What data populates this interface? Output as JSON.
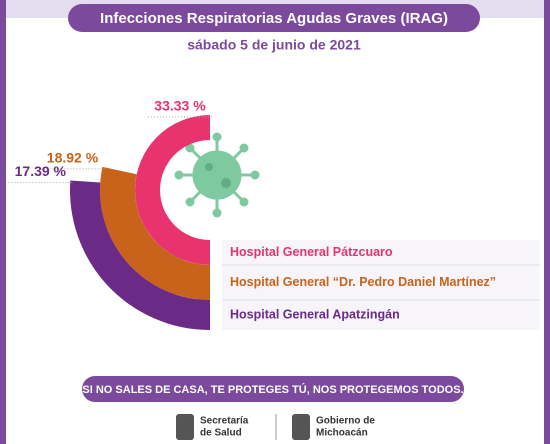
{
  "chart_data": {
    "type": "radial-bar",
    "title": "Infecciones Respiratorias Agudas Graves (IRAG)",
    "subtitle": "sábado 5 de junio de 2021",
    "categories": [
      "Hospital General Pátzcuaro",
      "Hospital General “Dr. Pedro Daniel Martínez”",
      "Hospital General Apatzingán"
    ],
    "values": [
      33.33,
      18.92,
      17.39
    ],
    "value_labels": [
      "33.33 %",
      "18.92 %",
      "17.39 %"
    ],
    "colors": [
      "#e8336e",
      "#c9621a",
      "#6a2a86"
    ],
    "footer_message": "SI NO SALES DE CASA, TE PROTEGES TÚ, NOS PROTEGEMOS TODOS.",
    "logos": [
      [
        "Secretaría",
        "de Salud"
      ],
      [
        "Gobierno de",
        "Michoacán"
      ]
    ]
  }
}
